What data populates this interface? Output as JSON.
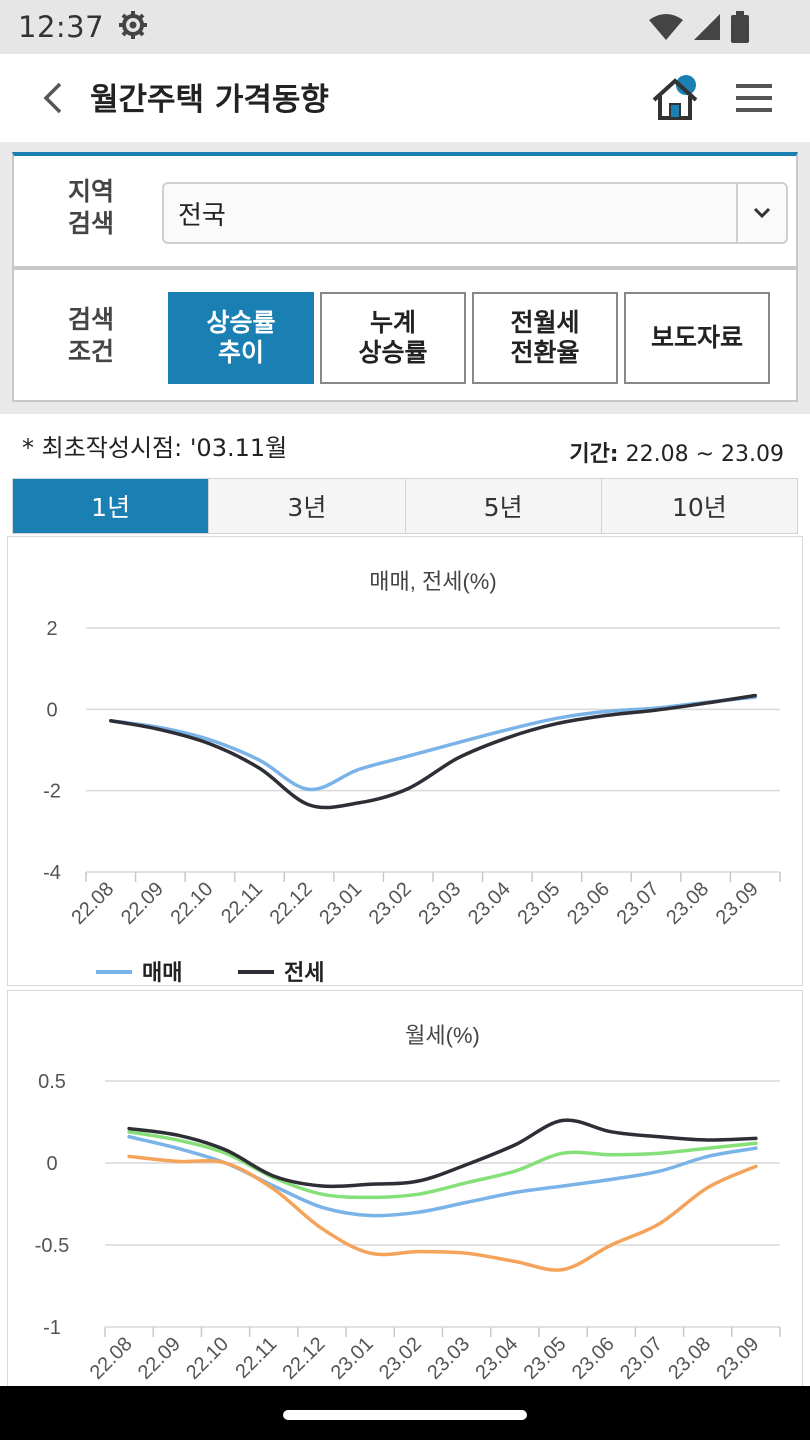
{
  "status_bar": {
    "time": "12:37"
  },
  "header": {
    "title": "월간주택 가격동향"
  },
  "search": {
    "region_label": "지역\n검색",
    "region_value": "전국",
    "condition_label": "검색\n조건",
    "buttons": [
      {
        "label": "상승률\n추이",
        "active": true
      },
      {
        "label": "누계\n상승률",
        "active": false
      },
      {
        "label": "전월세\n전환율",
        "active": false
      },
      {
        "label": "보도자료",
        "active": false
      }
    ]
  },
  "info": {
    "first_created": "* 최초작성시점: '03.11월",
    "period_label": "기간:",
    "period_value": "22.08 ~ 23.09"
  },
  "tabs": [
    {
      "label": "1년",
      "active": true
    },
    {
      "label": "3년",
      "active": false
    },
    {
      "label": "5년",
      "active": false
    },
    {
      "label": "10년",
      "active": false
    }
  ],
  "chart_data": [
    {
      "type": "line",
      "title": "매매, 전세(%)",
      "categories": [
        "22.08",
        "22.09",
        "22.10",
        "22.11",
        "22.12",
        "23.01",
        "23.02",
        "23.03",
        "23.04",
        "23.05",
        "23.06",
        "23.07",
        "23.08",
        "23.09"
      ],
      "ylim": [
        -4,
        2
      ],
      "yticks": [
        2,
        0,
        -2,
        -4
      ],
      "legend": "bottom-left",
      "series": [
        {
          "name": "매매",
          "color": "#7ab3e8",
          "values": [
            -0.28,
            -0.45,
            -0.75,
            -1.25,
            -1.97,
            -1.48,
            -1.15,
            -0.82,
            -0.5,
            -0.22,
            -0.05,
            0.03,
            0.17,
            0.3
          ]
        },
        {
          "name": "전세",
          "color": "#2e2e36",
          "values": [
            -0.28,
            -0.5,
            -0.85,
            -1.45,
            -2.35,
            -2.3,
            -1.95,
            -1.2,
            -0.7,
            -0.35,
            -0.15,
            -0.02,
            0.15,
            0.34
          ]
        }
      ]
    },
    {
      "type": "line",
      "title": "월세(%)",
      "categories": [
        "22.08",
        "22.09",
        "22.10",
        "22.11",
        "22.12",
        "23.01",
        "23.02",
        "23.03",
        "23.04",
        "23.05",
        "23.06",
        "23.07",
        "23.08",
        "23.09"
      ],
      "ylim": [
        -1,
        0.5
      ],
      "yticks": [
        0.5,
        0,
        -0.5,
        -1
      ],
      "yticklabels": [
        "0.5",
        "0",
        "-0.5",
        "-1"
      ],
      "series": [
        {
          "color": "#7ab3e8",
          "values": [
            0.16,
            0.09,
            0.0,
            -0.14,
            -0.27,
            -0.32,
            -0.3,
            -0.24,
            -0.18,
            -0.14,
            -0.1,
            -0.05,
            0.04,
            0.09
          ]
        },
        {
          "color": "#f5a35a",
          "values": [
            0.04,
            0.01,
            0.0,
            -0.16,
            -0.4,
            -0.55,
            -0.54,
            -0.55,
            -0.6,
            -0.65,
            -0.5,
            -0.37,
            -0.15,
            -0.02
          ]
        },
        {
          "color": "#86e07a",
          "values": [
            0.19,
            0.14,
            0.06,
            -0.09,
            -0.19,
            -0.21,
            -0.19,
            -0.12,
            -0.05,
            0.06,
            0.05,
            0.06,
            0.09,
            0.12
          ]
        },
        {
          "color": "#2e2e36",
          "values": [
            0.21,
            0.17,
            0.08,
            -0.08,
            -0.14,
            -0.13,
            -0.11,
            -0.01,
            0.11,
            0.26,
            0.19,
            0.16,
            0.14,
            0.15
          ]
        }
      ]
    }
  ]
}
